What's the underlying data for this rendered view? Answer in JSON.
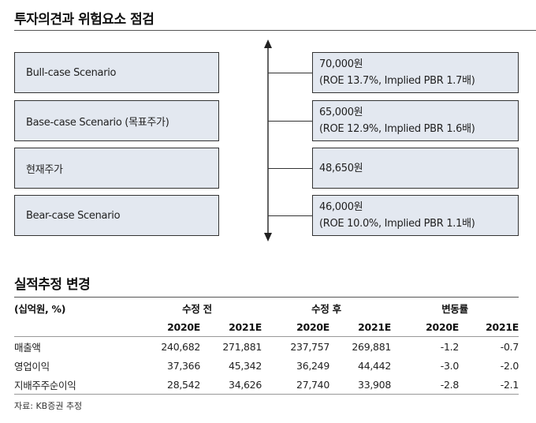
{
  "section1": {
    "title": "투자의견과 위험요소 점검",
    "scenarios": [
      {
        "label": "Bull-case Scenario",
        "value": "70,000원",
        "detail": "(ROE 13.7%, Implied PBR 1.7배)"
      },
      {
        "label": "Base-case Scenario (목표주가)",
        "value": "65,000원",
        "detail": "(ROE 12.9%, Implied PBR 1.6배)"
      },
      {
        "label": "현재주가",
        "value": "48,650원",
        "detail": ""
      },
      {
        "label": "Bear-case Scenario",
        "value": "46,000원",
        "detail": "(ROE 10.0%, Implied PBR 1.1배)"
      }
    ]
  },
  "section2": {
    "title": "실적추정 변경",
    "unit": "(십억원, %)",
    "groups": [
      "수정 전",
      "수정 후",
      "변동률"
    ],
    "years": [
      "2020E",
      "2021E",
      "2020E",
      "2021E",
      "2020E",
      "2021E"
    ],
    "rows": [
      {
        "label": "매출액",
        "values": [
          "240,682",
          "271,881",
          "237,757",
          "269,881",
          "-1.2",
          "-0.7"
        ]
      },
      {
        "label": "영업이익",
        "values": [
          "37,366",
          "45,342",
          "36,249",
          "44,442",
          "-3.0",
          "-2.0"
        ]
      },
      {
        "label": "지배주주순이익",
        "values": [
          "28,542",
          "34,626",
          "27,740",
          "33,908",
          "-2.8",
          "-2.1"
        ]
      }
    ],
    "source": "자료: KB증권 추정"
  }
}
